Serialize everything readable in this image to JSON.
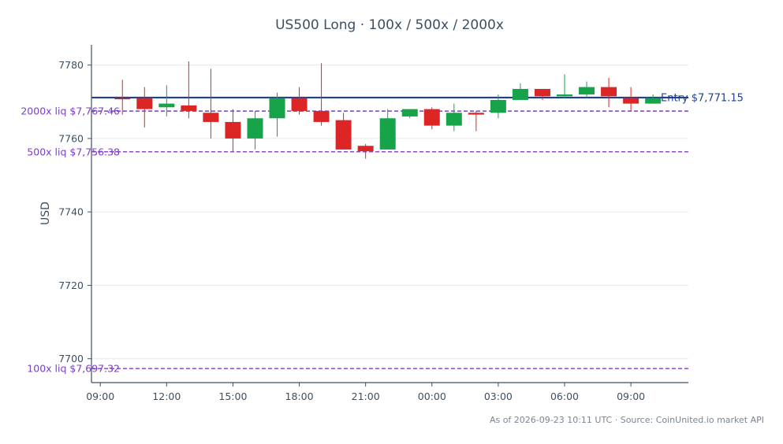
{
  "chart_data": {
    "type": "candlestick",
    "title": "US500 Long · 100x / 500x / 2000x",
    "ylabel": "USD",
    "xlabel": "",
    "ylim": [
      7693.5,
      7785.5
    ],
    "xlim": [
      8.6,
      35.6
    ],
    "yticks": [
      7700,
      7720,
      7740,
      7760,
      7780
    ],
    "xticks": [
      {
        "x": 9,
        "label": "09:00"
      },
      {
        "x": 12,
        "label": "12:00"
      },
      {
        "x": 15,
        "label": "15:00"
      },
      {
        "x": 18,
        "label": "18:00"
      },
      {
        "x": 21,
        "label": "21:00"
      },
      {
        "x": 24,
        "label": "00:00"
      },
      {
        "x": 27,
        "label": "03:00"
      },
      {
        "x": 30,
        "label": "06:00"
      },
      {
        "x": 33,
        "label": "09:00"
      }
    ],
    "grid": true,
    "colors": {
      "up": "#16a34a",
      "down": "#dc2626",
      "entry": "#1f3f8f",
      "liquidation": "#7b3fc4",
      "axis": "#3d4f63",
      "grid": "#e8e8e8"
    },
    "candles": [
      {
        "x": 10,
        "open": 7771.0,
        "high": 7776.0,
        "low": 7766.5,
        "close": 7770.8
      },
      {
        "x": 11,
        "open": 7771.0,
        "high": 7774.0,
        "low": 7763.0,
        "close": 7768.0
      },
      {
        "x": 12,
        "open": 7768.5,
        "high": 7774.5,
        "low": 7766.0,
        "close": 7769.5
      },
      {
        "x": 13,
        "open": 7769.0,
        "high": 7781.0,
        "low": 7765.5,
        "close": 7767.5
      },
      {
        "x": 14,
        "open": 7767.0,
        "high": 7779.0,
        "low": 7760.0,
        "close": 7764.5
      },
      {
        "x": 15,
        "open": 7764.5,
        "high": 7768.0,
        "low": 7756.5,
        "close": 7760.0
      },
      {
        "x": 16,
        "open": 7760.0,
        "high": 7767.5,
        "low": 7757.0,
        "close": 7765.5
      },
      {
        "x": 17,
        "open": 7765.5,
        "high": 7772.5,
        "low": 7760.5,
        "close": 7771.0
      },
      {
        "x": 18,
        "open": 7771.0,
        "high": 7774.0,
        "low": 7766.5,
        "close": 7767.5
      },
      {
        "x": 19,
        "open": 7767.5,
        "high": 7780.5,
        "low": 7763.5,
        "close": 7764.5
      },
      {
        "x": 20,
        "open": 7765.0,
        "high": 7767.0,
        "low": 7757.0,
        "close": 7757.0
      },
      {
        "x": 21,
        "open": 7758.0,
        "high": 7758.5,
        "low": 7754.5,
        "close": 7756.5
      },
      {
        "x": 22,
        "open": 7757.0,
        "high": 7768.0,
        "low": 7757.0,
        "close": 7765.5
      },
      {
        "x": 23,
        "open": 7766.0,
        "high": 7768.0,
        "low": 7765.5,
        "close": 7768.0
      },
      {
        "x": 24,
        "open": 7768.0,
        "high": 7768.5,
        "low": 7762.5,
        "close": 7763.5
      },
      {
        "x": 25,
        "open": 7763.5,
        "high": 7769.5,
        "low": 7762.0,
        "close": 7767.0
      },
      {
        "x": 26,
        "open": 7767.0,
        "high": 7767.5,
        "low": 7762.0,
        "close": 7766.5
      },
      {
        "x": 27,
        "open": 7767.0,
        "high": 7772.0,
        "low": 7765.5,
        "close": 7770.5
      },
      {
        "x": 28,
        "open": 7770.5,
        "high": 7775.0,
        "low": 7770.5,
        "close": 7773.5
      },
      {
        "x": 29,
        "open": 7773.5,
        "high": 7773.5,
        "low": 7770.5,
        "close": 7771.5
      },
      {
        "x": 30,
        "open": 7771.5,
        "high": 7777.5,
        "low": 7771.0,
        "close": 7772.0
      },
      {
        "x": 31,
        "open": 7772.0,
        "high": 7775.5,
        "low": 7771.0,
        "close": 7774.0
      },
      {
        "x": 32,
        "open": 7774.0,
        "high": 7776.5,
        "low": 7768.5,
        "close": 7771.5
      },
      {
        "x": 33,
        "open": 7771.0,
        "high": 7774.0,
        "low": 7767.5,
        "close": 7769.5
      },
      {
        "x": 34,
        "open": 7769.5,
        "high": 7772.0,
        "low": 7769.5,
        "close": 7771.0
      }
    ],
    "reference_lines": [
      {
        "name": "entry",
        "value": 7771.15,
        "label": "Entry $7,771.15",
        "style": "solid"
      },
      {
        "name": "liq-2000x",
        "value": 7767.46,
        "label": "2000x liq $7,767.46",
        "style": "dashed"
      },
      {
        "name": "liq-500x",
        "value": 7756.38,
        "label": "500x liq $7,756.38",
        "style": "dashed"
      },
      {
        "name": "liq-100x",
        "value": 7697.32,
        "label": "100x liq $7,697.32",
        "style": "dashed"
      }
    ]
  },
  "footer": "As of 2026-09-23 10:11 UTC · Source: CoinUnited.io market API"
}
